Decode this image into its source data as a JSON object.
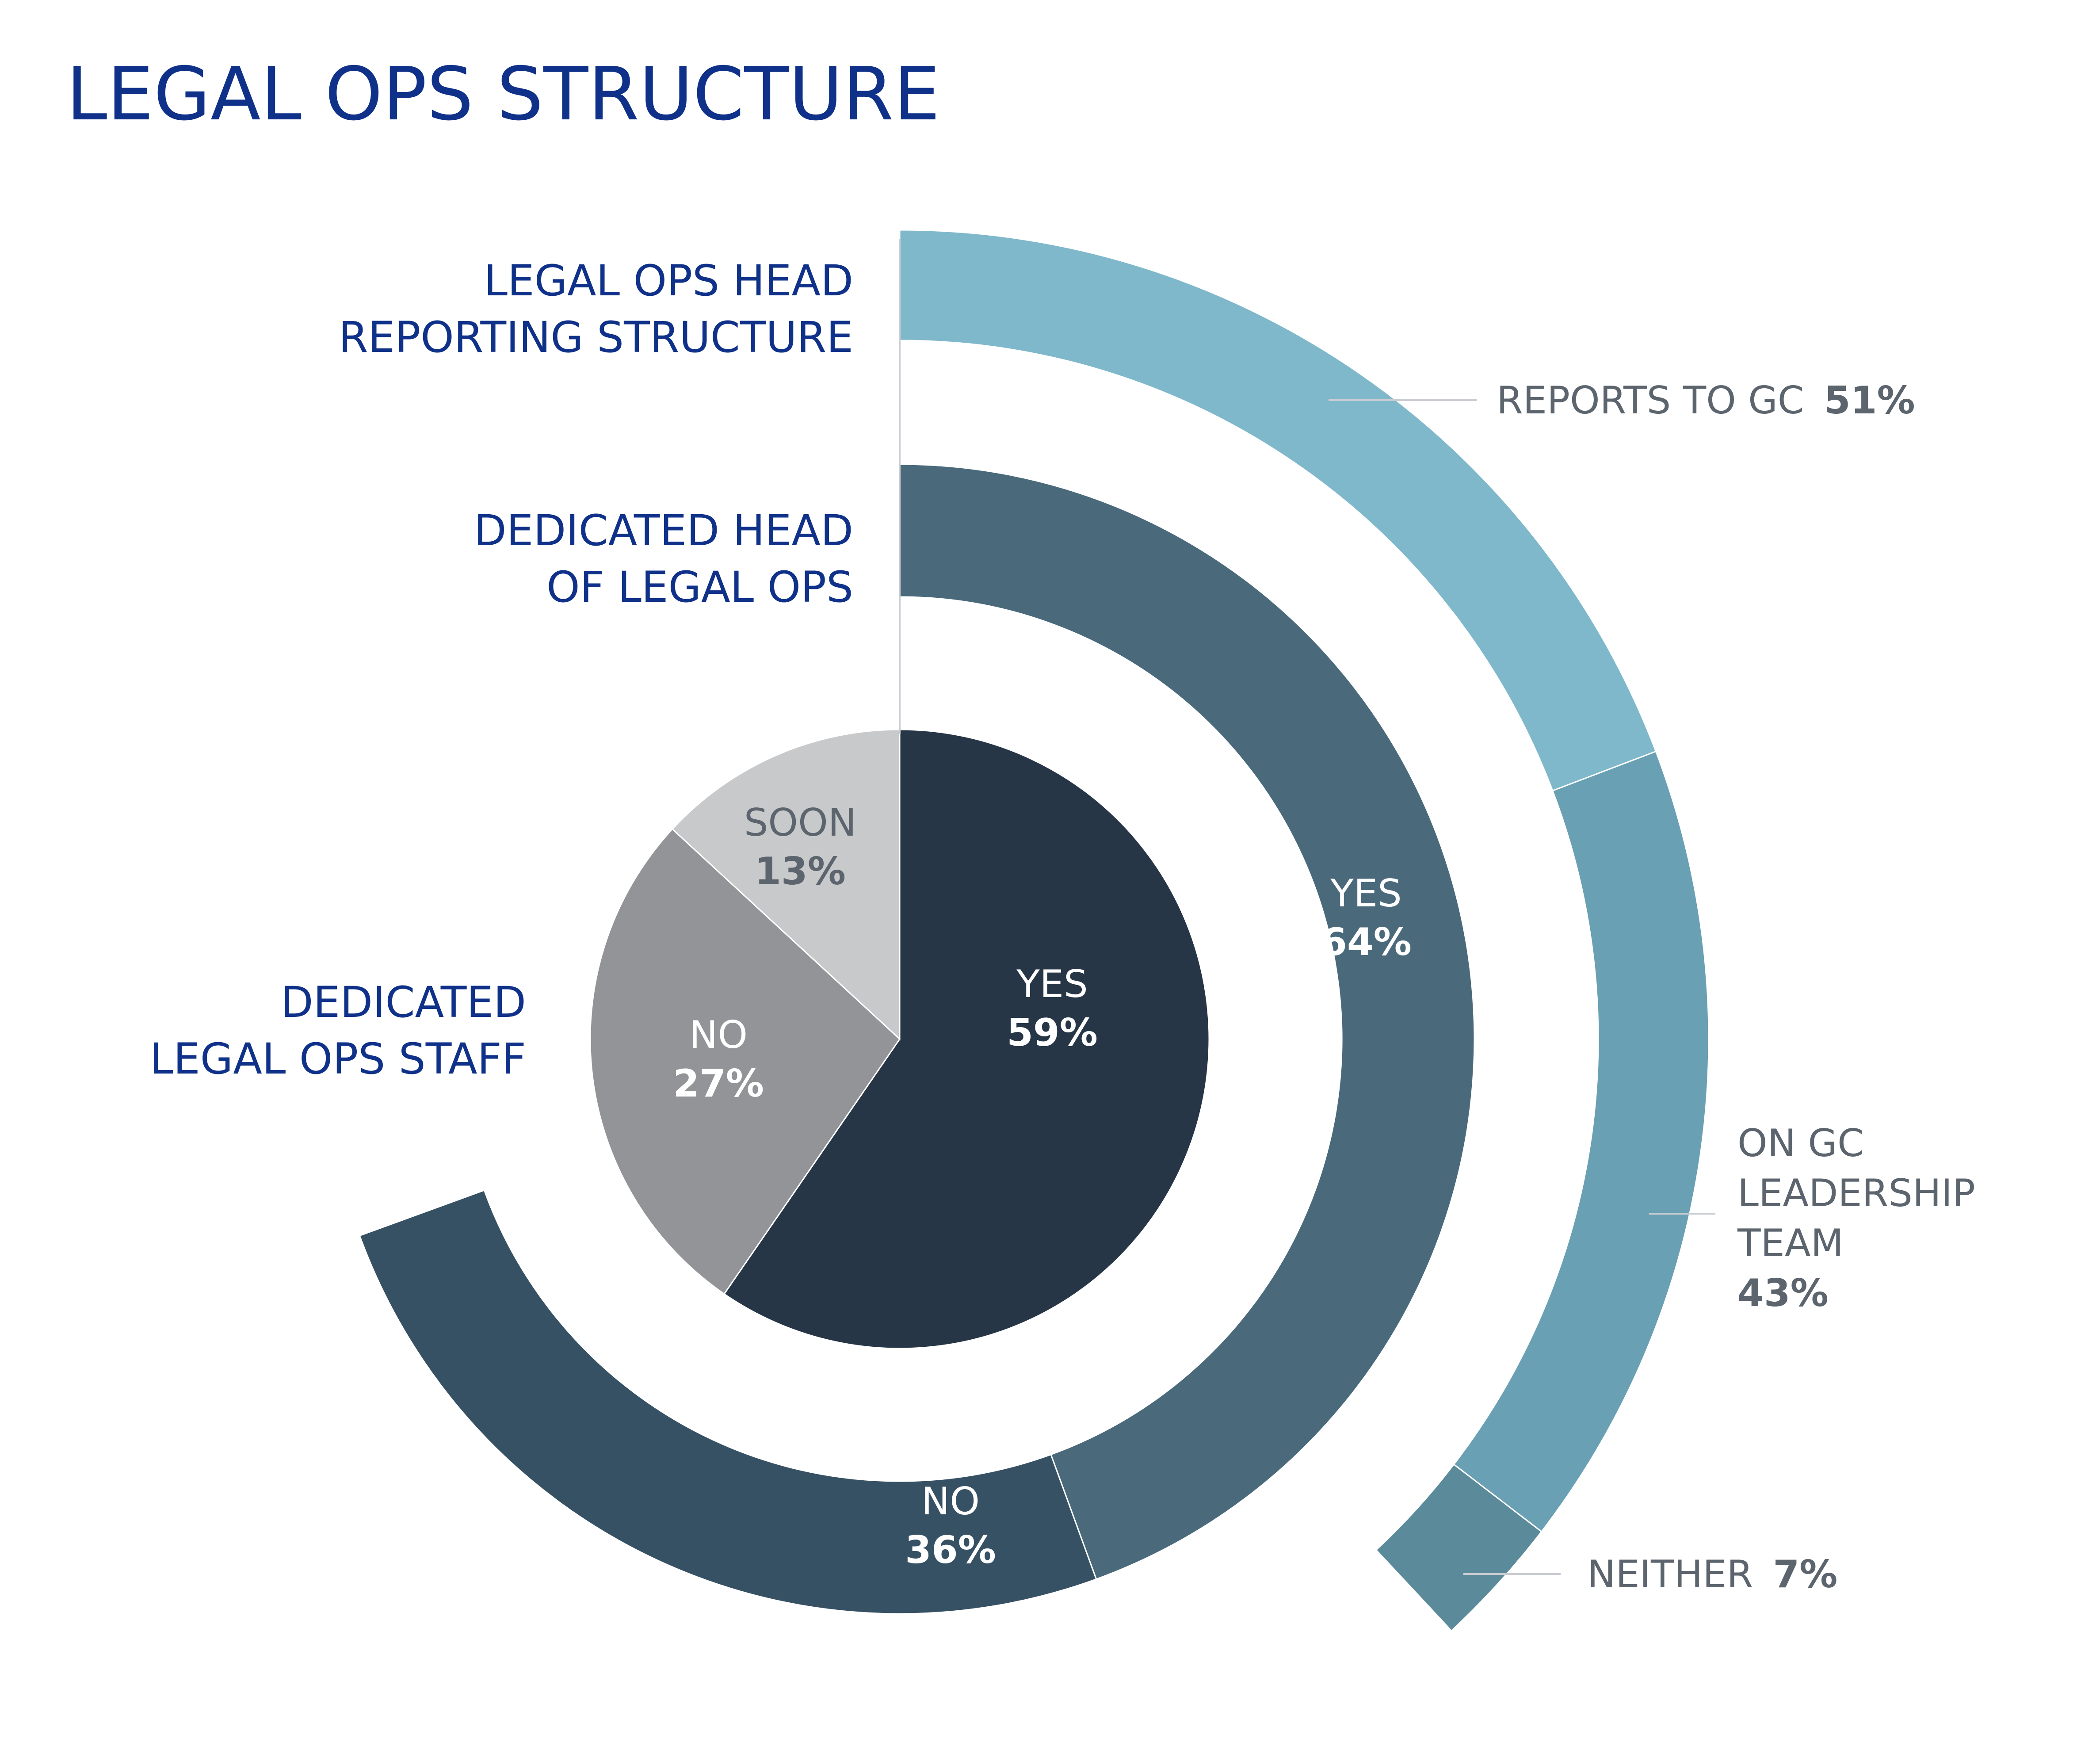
{
  "title": "LEGAL OPS STRUCTURE",
  "colors": {
    "title": "#0f3189",
    "label_blue": "#0f3189",
    "label_gray": "#5c646e",
    "leader_line": "#c9ccd1",
    "staff_yes": "#263646",
    "staff_no": "#939498",
    "staff_soon": "#c8c9cb",
    "head_yes": "#4a6a7c",
    "head_no": "#375164",
    "reports_gc": "#7fb8cb",
    "on_gc_team": "#6aa0b3",
    "neither": "#5b8a9b",
    "inner_text_light": "#ffffff",
    "inner_text_dark": "#5c646e"
  },
  "chart_data": {
    "type": "pie",
    "rings": [
      {
        "name": "DEDICATED LEGAL OPS STAFF",
        "label_lines": [
          "DEDICATED",
          "LEGAL OPS STAFF"
        ],
        "slices": [
          {
            "label": "YES",
            "value": 59,
            "value_text": "59%",
            "color": "#263646"
          },
          {
            "label": "NO",
            "value": 27,
            "value_text": "27%",
            "color": "#939498"
          },
          {
            "label": "SOON",
            "value": 13,
            "value_text": "13%",
            "color": "#c8c9cb"
          }
        ]
      },
      {
        "name": "DEDICATED HEAD OF LEGAL OPS",
        "label_lines": [
          "DEDICATED HEAD",
          "OF LEGAL OPS"
        ],
        "slices": [
          {
            "label": "YES",
            "value": 64,
            "value_text": "64%",
            "color": "#4a6a7c"
          },
          {
            "label": "NO",
            "value": 36,
            "value_text": "36%",
            "color": "#375164"
          }
        ]
      },
      {
        "name": "LEGAL OPS HEAD REPORTING STRUCTURE",
        "label_lines": [
          "LEGAL OPS HEAD",
          "REPORTING STRUCTURE"
        ],
        "slices": [
          {
            "label": "REPORTS TO GC",
            "label_lines": [
              "REPORTS TO GC"
            ],
            "value": 51,
            "value_text": "51%",
            "color": "#7fb8cb"
          },
          {
            "label": "ON GC LEADERSHIP TEAM",
            "label_lines": [
              "ON GC",
              "LEADERSHIP",
              "TEAM"
            ],
            "value": 43,
            "value_text": "43%",
            "color": "#6aa0b3"
          },
          {
            "label": "NEITHER",
            "label_lines": [
              "NEITHER"
            ],
            "value": 7,
            "value_text": "7%",
            "color": "#5b8a9b"
          }
        ]
      }
    ]
  }
}
